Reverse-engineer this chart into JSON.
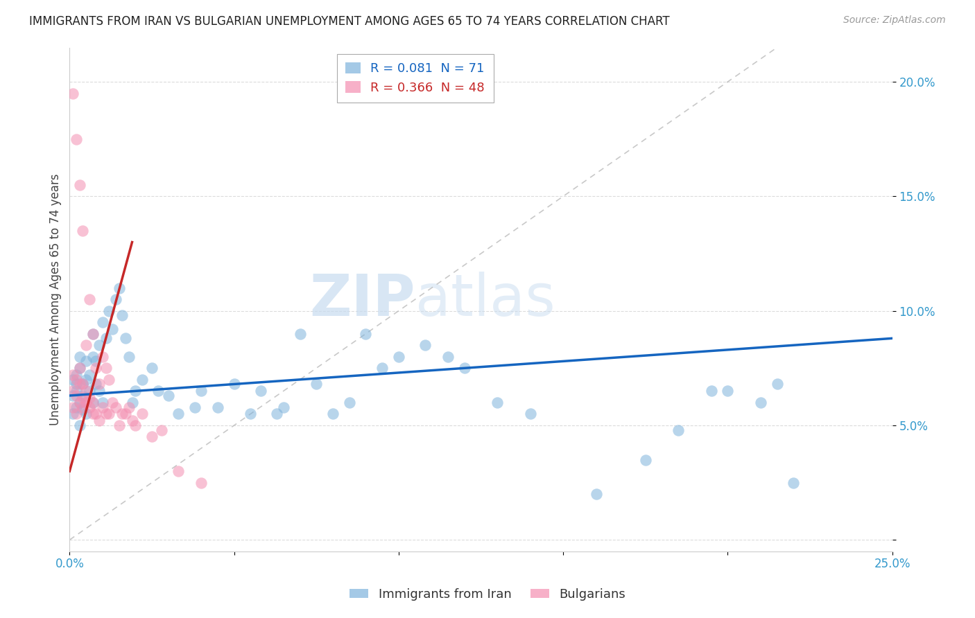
{
  "title": "IMMIGRANTS FROM IRAN VS BULGARIAN UNEMPLOYMENT AMONG AGES 65 TO 74 YEARS CORRELATION CHART",
  "source": "Source: ZipAtlas.com",
  "ylabel": "Unemployment Among Ages 65 to 74 years",
  "xlim": [
    0.0,
    0.25
  ],
  "ylim": [
    -0.005,
    0.215
  ],
  "legend_r1": "R = 0.081",
  "legend_n1": "N = 71",
  "legend_r2": "R = 0.366",
  "legend_n2": "N = 48",
  "color_blue": "#7EB3DC",
  "color_pink": "#F48FB1",
  "color_line_blue": "#1565C0",
  "color_line_pink": "#C62828",
  "watermark_zip": "ZIP",
  "watermark_atlas": "atlas",
  "background_color": "#ffffff",
  "grid_color": "#cccccc",
  "blue_scatter_x": [
    0.001,
    0.001,
    0.001,
    0.002,
    0.002,
    0.002,
    0.002,
    0.003,
    0.003,
    0.003,
    0.003,
    0.004,
    0.004,
    0.004,
    0.005,
    0.005,
    0.005,
    0.006,
    0.006,
    0.007,
    0.007,
    0.007,
    0.008,
    0.008,
    0.009,
    0.009,
    0.01,
    0.01,
    0.011,
    0.012,
    0.013,
    0.014,
    0.015,
    0.016,
    0.017,
    0.018,
    0.019,
    0.02,
    0.022,
    0.025,
    0.027,
    0.03,
    0.033,
    0.038,
    0.04,
    0.045,
    0.05,
    0.055,
    0.058,
    0.063,
    0.065,
    0.07,
    0.075,
    0.08,
    0.085,
    0.09,
    0.095,
    0.1,
    0.108,
    0.115,
    0.12,
    0.13,
    0.14,
    0.16,
    0.175,
    0.185,
    0.195,
    0.2,
    0.21,
    0.215,
    0.22
  ],
  "blue_scatter_y": [
    0.063,
    0.07,
    0.055,
    0.065,
    0.058,
    0.068,
    0.072,
    0.06,
    0.075,
    0.05,
    0.08,
    0.063,
    0.057,
    0.068,
    0.055,
    0.07,
    0.078,
    0.065,
    0.072,
    0.06,
    0.08,
    0.09,
    0.068,
    0.078,
    0.065,
    0.085,
    0.06,
    0.095,
    0.088,
    0.1,
    0.092,
    0.105,
    0.11,
    0.098,
    0.088,
    0.08,
    0.06,
    0.065,
    0.07,
    0.075,
    0.065,
    0.063,
    0.055,
    0.058,
    0.065,
    0.058,
    0.068,
    0.055,
    0.065,
    0.055,
    0.058,
    0.09,
    0.068,
    0.055,
    0.06,
    0.09,
    0.075,
    0.08,
    0.085,
    0.08,
    0.075,
    0.06,
    0.055,
    0.02,
    0.035,
    0.048,
    0.065,
    0.065,
    0.06,
    0.068,
    0.025
  ],
  "pink_scatter_x": [
    0.001,
    0.001,
    0.001,
    0.001,
    0.002,
    0.002,
    0.002,
    0.002,
    0.003,
    0.003,
    0.003,
    0.003,
    0.004,
    0.004,
    0.004,
    0.004,
    0.005,
    0.005,
    0.005,
    0.006,
    0.006,
    0.006,
    0.007,
    0.007,
    0.007,
    0.008,
    0.008,
    0.009,
    0.009,
    0.01,
    0.01,
    0.011,
    0.011,
    0.012,
    0.012,
    0.013,
    0.014,
    0.015,
    0.016,
    0.017,
    0.018,
    0.019,
    0.02,
    0.022,
    0.025,
    0.028,
    0.033,
    0.04
  ],
  "pink_scatter_y": [
    0.065,
    0.072,
    0.058,
    0.195,
    0.063,
    0.07,
    0.055,
    0.175,
    0.068,
    0.075,
    0.06,
    0.155,
    0.062,
    0.068,
    0.058,
    0.135,
    0.06,
    0.065,
    0.085,
    0.058,
    0.062,
    0.105,
    0.055,
    0.06,
    0.09,
    0.055,
    0.075,
    0.052,
    0.068,
    0.058,
    0.08,
    0.055,
    0.075,
    0.055,
    0.07,
    0.06,
    0.058,
    0.05,
    0.055,
    0.055,
    0.058,
    0.052,
    0.05,
    0.055,
    0.045,
    0.048,
    0.03,
    0.025
  ],
  "blue_line_x": [
    0.0,
    0.25
  ],
  "blue_line_y": [
    0.063,
    0.088
  ],
  "pink_line_x": [
    0.0,
    0.019
  ],
  "pink_line_y": [
    0.03,
    0.13
  ],
  "diag_line_x": [
    0.0,
    0.215
  ],
  "diag_line_y": [
    0.0,
    0.215
  ]
}
